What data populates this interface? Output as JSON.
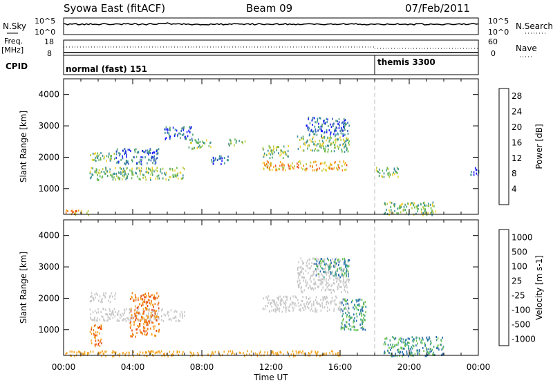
{
  "header": {
    "station": "Syowa East (fitACF)",
    "beam": "Beam 09",
    "date": "07/Feb/2011"
  },
  "top_panels": {
    "nsky_label": "N.Sky",
    "nsearch_label": "N.Search",
    "noise_ticks_left": [
      "10^5",
      "10^0"
    ],
    "noise_ticks_right": [
      "10^5",
      "10^0"
    ],
    "freq_label": "Freq.",
    "freq_unit": "[MHz]",
    "freq_ticks": [
      "18",
      "8"
    ],
    "nave_label": "Nave",
    "nave_ticks": [
      "60",
      "0"
    ],
    "cpid_label": "CPID",
    "cpid_segments": [
      {
        "label": "normal (fast) 151",
        "start_hour": 0
      },
      {
        "label": "themis 3300",
        "start_hour": 18
      }
    ]
  },
  "chart_data": [
    {
      "type": "heatmap",
      "panel": "power",
      "ylabel": "Slant Range [km]",
      "ylim": [
        180,
        4500
      ],
      "yticks": [
        1000,
        2000,
        3000,
        4000
      ],
      "xlim": [
        0,
        24
      ],
      "x_tick_labels": [
        "00:00",
        "04:00",
        "08:00",
        "12:00",
        "16:00",
        "20:00",
        "00:00"
      ],
      "colorbar": {
        "label": "Power [dB]",
        "ticks": [
          "4",
          "8",
          "12",
          "16",
          "20",
          "24",
          "28"
        ],
        "colors": [
          "#1a1aff",
          "#2a5bb8",
          "#3a8e9a",
          "#4aa06e",
          "#66b84c",
          "#b4c83a",
          "#f2d02a",
          "#f5a623",
          "#f07a1a",
          "#e8451a",
          "#ff0000"
        ]
      },
      "echo_regions": [
        {
          "t0": 0.0,
          "t1": 1.5,
          "r0": 180,
          "r1": 350,
          "level": "high"
        },
        {
          "t0": 1.5,
          "t1": 7.0,
          "r0": 1300,
          "r1": 1700,
          "level": "medium"
        },
        {
          "t0": 1.5,
          "t1": 3.0,
          "r0": 1900,
          "r1": 2200,
          "level": "medium"
        },
        {
          "t0": 3.0,
          "t1": 5.5,
          "r0": 1800,
          "r1": 2300,
          "level": "low"
        },
        {
          "t0": 5.8,
          "t1": 7.5,
          "r0": 2600,
          "r1": 3000,
          "level": "low"
        },
        {
          "t0": 7.2,
          "t1": 8.5,
          "r0": 2300,
          "r1": 2600,
          "level": "medium"
        },
        {
          "t0": 8.5,
          "t1": 9.5,
          "r0": 1800,
          "r1": 2100,
          "level": "low"
        },
        {
          "t0": 9.5,
          "t1": 10.5,
          "r0": 2400,
          "r1": 2600,
          "level": "medium"
        },
        {
          "t0": 11.5,
          "t1": 16.5,
          "r0": 1600,
          "r1": 1900,
          "level": "high"
        },
        {
          "t0": 11.5,
          "t1": 13.0,
          "r0": 2000,
          "r1": 2400,
          "level": "medium"
        },
        {
          "t0": 13.5,
          "t1": 16.5,
          "r0": 2200,
          "r1": 2700,
          "level": "medium"
        },
        {
          "t0": 14.0,
          "t1": 16.5,
          "r0": 2700,
          "r1": 3300,
          "level": "low"
        },
        {
          "t0": 18.0,
          "t1": 19.5,
          "r0": 1400,
          "r1": 1700,
          "level": "medium"
        },
        {
          "t0": 18.5,
          "t1": 21.5,
          "r0": 180,
          "r1": 600,
          "level": "medium"
        },
        {
          "t0": 23.5,
          "t1": 24.0,
          "r0": 1400,
          "r1": 1700,
          "level": "low"
        }
      ]
    },
    {
      "type": "heatmap",
      "panel": "velocity",
      "ylabel": "Slant Range [km]",
      "xlabel": "Time UT",
      "ylim": [
        180,
        4500
      ],
      "yticks": [
        1000,
        2000,
        3000,
        4000
      ],
      "xlim": [
        0,
        24
      ],
      "x_tick_labels": [
        "00:00",
        "04:00",
        "08:00",
        "12:00",
        "16:00",
        "20:00",
        "00:00"
      ],
      "colorbar": {
        "label": "Velocity [m s-1]",
        "ticks": [
          "1000",
          "500",
          "100",
          "25",
          "-25",
          "-100",
          "-500",
          "-1000"
        ],
        "colors": [
          "#1a35c8",
          "#2a6db0",
          "#3d9c8c",
          "#66c24a",
          "#c8c8c8",
          "#f5a623",
          "#ef7a12",
          "#e84a12",
          "#ff0000"
        ]
      },
      "echo_regions": [
        {
          "t0": 1.5,
          "t1": 7.0,
          "r0": 1300,
          "r1": 1700,
          "level": "ground"
        },
        {
          "t0": 1.5,
          "t1": 3.0,
          "r0": 1900,
          "r1": 2200,
          "level": "ground"
        },
        {
          "t0": 3.8,
          "t1": 5.5,
          "r0": 800,
          "r1": 2200,
          "level": "negative"
        },
        {
          "t0": 1.5,
          "t1": 2.2,
          "r0": 500,
          "r1": 1200,
          "level": "negative"
        },
        {
          "t0": 0.0,
          "t1": 16.0,
          "r0": 180,
          "r1": 350,
          "level": "weak-negative"
        },
        {
          "t0": 11.5,
          "t1": 16.5,
          "r0": 1600,
          "r1": 2100,
          "level": "ground"
        },
        {
          "t0": 13.5,
          "t1": 16.5,
          "r0": 2200,
          "r1": 3300,
          "level": "ground"
        },
        {
          "t0": 14.5,
          "t1": 16.5,
          "r0": 2700,
          "r1": 3300,
          "level": "positive"
        },
        {
          "t0": 16.0,
          "t1": 17.5,
          "r0": 1000,
          "r1": 2000,
          "level": "positive"
        },
        {
          "t0": 18.5,
          "t1": 22.0,
          "r0": 180,
          "r1": 800,
          "level": "positive"
        }
      ]
    }
  ]
}
